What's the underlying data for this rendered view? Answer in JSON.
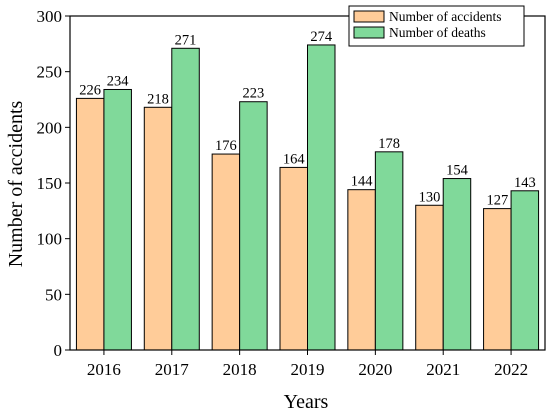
{
  "chart_data": {
    "type": "bar",
    "categories": [
      "2016",
      "2017",
      "2018",
      "2019",
      "2020",
      "2021",
      "2022"
    ],
    "series": [
      {
        "name": "Number of accidents",
        "color": "#FFCC99",
        "values": [
          226,
          218,
          176,
          164,
          144,
          130,
          127
        ]
      },
      {
        "name": "Number of deaths",
        "color": "#80D99A",
        "values": [
          234,
          271,
          223,
          274,
          178,
          154,
          143
        ]
      }
    ],
    "title": "",
    "xlabel": "Years",
    "ylabel": "Number of accidents",
    "ylim": [
      0,
      300
    ],
    "yticks": [
      0,
      50,
      100,
      150,
      200,
      250,
      300
    ],
    "grid": false,
    "legend": "top-right",
    "data_labels": true
  }
}
